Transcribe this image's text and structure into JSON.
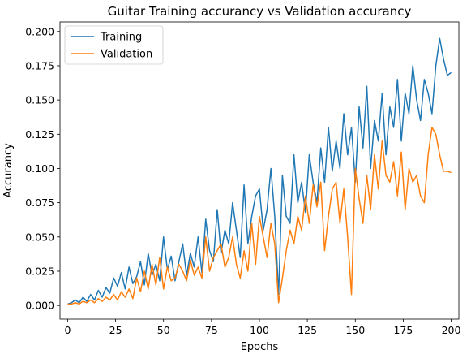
{
  "chart_data": {
    "type": "line",
    "title": "Guitar Training accurancy vs Validation accurancy",
    "xlabel": "Epochs",
    "ylabel": "Accurancy",
    "xlim": [
      -4,
      204
    ],
    "ylim": [
      -0.01,
      0.207
    ],
    "xticks": [
      0,
      25,
      50,
      75,
      100,
      125,
      150,
      175,
      200
    ],
    "yticks": [
      0.0,
      0.025,
      0.05,
      0.075,
      0.1,
      0.125,
      0.15,
      0.175,
      0.2
    ],
    "ytick_labels": [
      "0.000",
      "0.025",
      "0.050",
      "0.075",
      "0.100",
      "0.125",
      "0.150",
      "0.175",
      "0.200"
    ],
    "legend": "upper-left",
    "grid": false,
    "series": [
      {
        "name": "Training",
        "color": "#1f77b4",
        "x": [
          0,
          2,
          4,
          6,
          8,
          10,
          12,
          14,
          16,
          18,
          20,
          22,
          24,
          26,
          28,
          30,
          32,
          34,
          36,
          38,
          40,
          42,
          44,
          46,
          48,
          50,
          52,
          54,
          56,
          58,
          60,
          62,
          64,
          66,
          68,
          70,
          72,
          74,
          76,
          78,
          80,
          82,
          84,
          86,
          88,
          90,
          92,
          94,
          96,
          98,
          100,
          102,
          104,
          106,
          108,
          110,
          112,
          114,
          116,
          118,
          120,
          122,
          124,
          126,
          128,
          130,
          132,
          134,
          136,
          138,
          140,
          142,
          144,
          146,
          148,
          150,
          152,
          154,
          156,
          158,
          160,
          162,
          164,
          166,
          168,
          170,
          172,
          174,
          176,
          178,
          180,
          182,
          184,
          186,
          188,
          190,
          192,
          194,
          196,
          198,
          200
        ],
        "y": [
          0.001,
          0.002,
          0.004,
          0.002,
          0.006,
          0.003,
          0.008,
          0.004,
          0.011,
          0.006,
          0.013,
          0.009,
          0.02,
          0.014,
          0.024,
          0.012,
          0.028,
          0.016,
          0.021,
          0.032,
          0.015,
          0.038,
          0.022,
          0.03,
          0.018,
          0.05,
          0.026,
          0.036,
          0.018,
          0.032,
          0.045,
          0.022,
          0.038,
          0.028,
          0.05,
          0.024,
          0.063,
          0.04,
          0.032,
          0.07,
          0.038,
          0.055,
          0.045,
          0.075,
          0.055,
          0.035,
          0.088,
          0.045,
          0.065,
          0.08,
          0.085,
          0.055,
          0.07,
          0.1,
          0.065,
          0.008,
          0.095,
          0.065,
          0.06,
          0.11,
          0.075,
          0.09,
          0.068,
          0.11,
          0.09,
          0.075,
          0.115,
          0.09,
          0.13,
          0.098,
          0.12,
          0.1,
          0.14,
          0.11,
          0.13,
          0.09,
          0.145,
          0.115,
          0.16,
          0.1,
          0.135,
          0.12,
          0.155,
          0.11,
          0.145,
          0.13,
          0.165,
          0.12,
          0.155,
          0.14,
          0.175,
          0.15,
          0.135,
          0.165,
          0.155,
          0.14,
          0.175,
          0.195,
          0.18,
          0.168,
          0.17
        ]
      },
      {
        "name": "Validation",
        "color": "#ff7f0e",
        "x": [
          0,
          2,
          4,
          6,
          8,
          10,
          12,
          14,
          16,
          18,
          20,
          22,
          24,
          26,
          28,
          30,
          32,
          34,
          36,
          38,
          40,
          42,
          44,
          46,
          48,
          50,
          52,
          54,
          56,
          58,
          60,
          62,
          64,
          66,
          68,
          70,
          72,
          74,
          76,
          78,
          80,
          82,
          84,
          86,
          88,
          90,
          92,
          94,
          96,
          98,
          100,
          102,
          104,
          106,
          108,
          110,
          112,
          114,
          116,
          118,
          120,
          122,
          124,
          126,
          128,
          130,
          132,
          134,
          136,
          138,
          140,
          142,
          144,
          146,
          148,
          150,
          152,
          154,
          156,
          158,
          160,
          162,
          164,
          166,
          168,
          170,
          172,
          174,
          176,
          178,
          180,
          182,
          184,
          186,
          188,
          190,
          192,
          194,
          196,
          198,
          200
        ],
        "y": [
          0.001,
          0.001,
          0.002,
          0.001,
          0.003,
          0.002,
          0.004,
          0.002,
          0.005,
          0.003,
          0.006,
          0.004,
          0.008,
          0.004,
          0.01,
          0.006,
          0.012,
          0.005,
          0.02,
          0.01,
          0.025,
          0.012,
          0.03,
          0.015,
          0.035,
          0.012,
          0.028,
          0.018,
          0.02,
          0.03,
          0.025,
          0.018,
          0.033,
          0.022,
          0.028,
          0.02,
          0.05,
          0.025,
          0.035,
          0.04,
          0.045,
          0.028,
          0.035,
          0.05,
          0.03,
          0.02,
          0.04,
          0.025,
          0.06,
          0.03,
          0.065,
          0.05,
          0.035,
          0.06,
          0.045,
          0.002,
          0.02,
          0.04,
          0.055,
          0.045,
          0.065,
          0.055,
          0.08,
          0.06,
          0.088,
          0.072,
          0.09,
          0.04,
          0.065,
          0.085,
          0.09,
          0.06,
          0.085,
          0.05,
          0.008,
          0.1,
          0.078,
          0.06,
          0.095,
          0.07,
          0.11,
          0.085,
          0.12,
          0.095,
          0.09,
          0.105,
          0.08,
          0.112,
          0.07,
          0.1,
          0.09,
          0.095,
          0.08,
          0.075,
          0.11,
          0.13,
          0.125,
          0.11,
          0.098,
          0.098,
          0.097
        ]
      }
    ]
  }
}
